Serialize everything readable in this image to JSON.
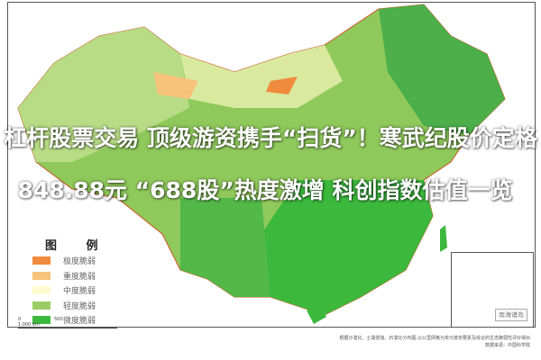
{
  "headline": {
    "line1": "杠杆股票交易 顶级游资携手“扫货”！寒武纪股价定格",
    "line2": "848.88元 “688股”热度激增 科创指数估值一览"
  },
  "legend": {
    "title": "图 例",
    "items": [
      {
        "label": "极度脆弱",
        "color": "#f08a3c"
      },
      {
        "label": "重度脆弱",
        "color": "#f7c27a"
      },
      {
        "label": "中度脆弱",
        "color": "#fffbd0"
      },
      {
        "label": "轻度脆弱",
        "color": "#9ccc65"
      },
      {
        "label": "微度脆弱",
        "color": "#3cb93c"
      }
    ]
  },
  "scale": [
    "0",
    "500",
    "1,000 Km"
  ],
  "inset_label": "南海诸岛",
  "note": [
    "根据沙漠化、土壤侵蚀、石漠化分布图,以公里网格为单元按单要素及综合的生态脆弱性评价得出",
    "数据来源：中国科学院"
  ]
}
